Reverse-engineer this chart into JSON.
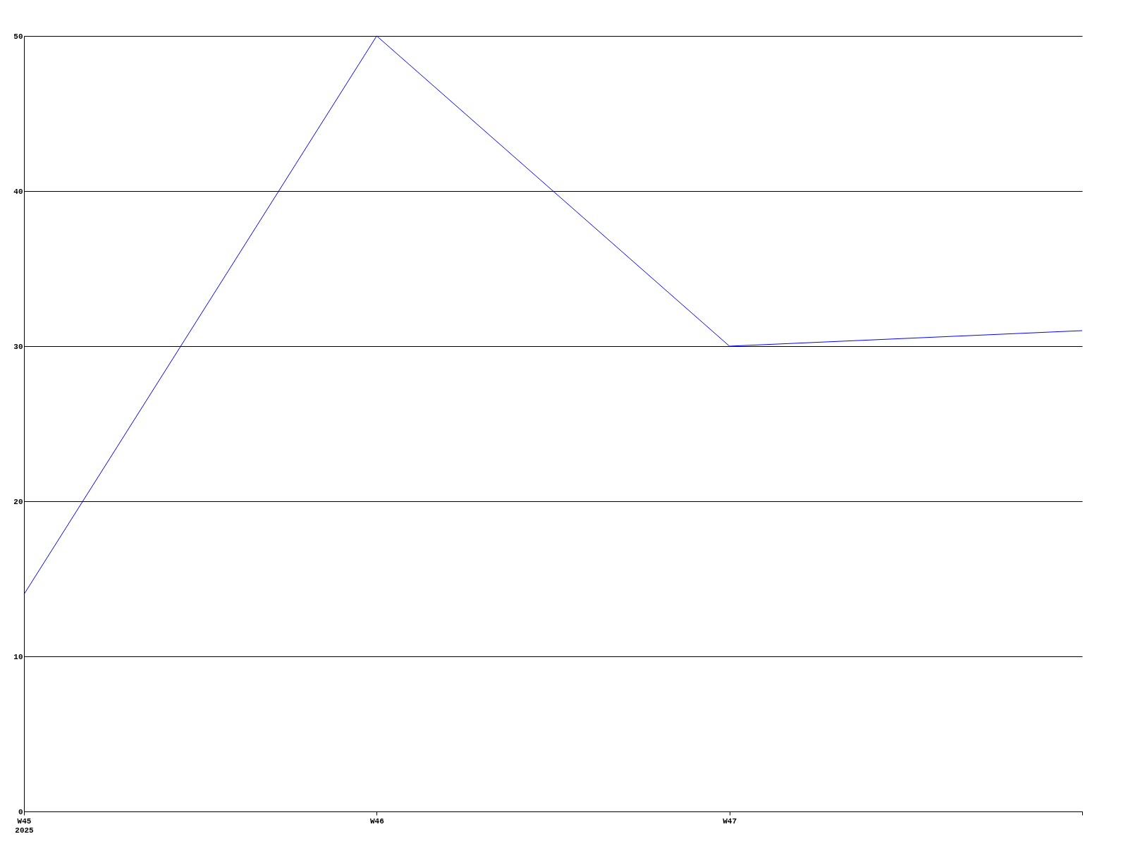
{
  "chart_data": {
    "type": "line",
    "categories": [
      "W45\n2025",
      "W46",
      "W47",
      null
    ],
    "series": [
      {
        "color": "#0000ff",
        "values": [
          14,
          50,
          30,
          31
        ]
      }
    ],
    "ylim": [
      0,
      50
    ],
    "yticks": [
      0,
      10,
      20,
      30,
      40,
      50
    ],
    "grid": "y",
    "line_style": "solid",
    "legend": false
  }
}
